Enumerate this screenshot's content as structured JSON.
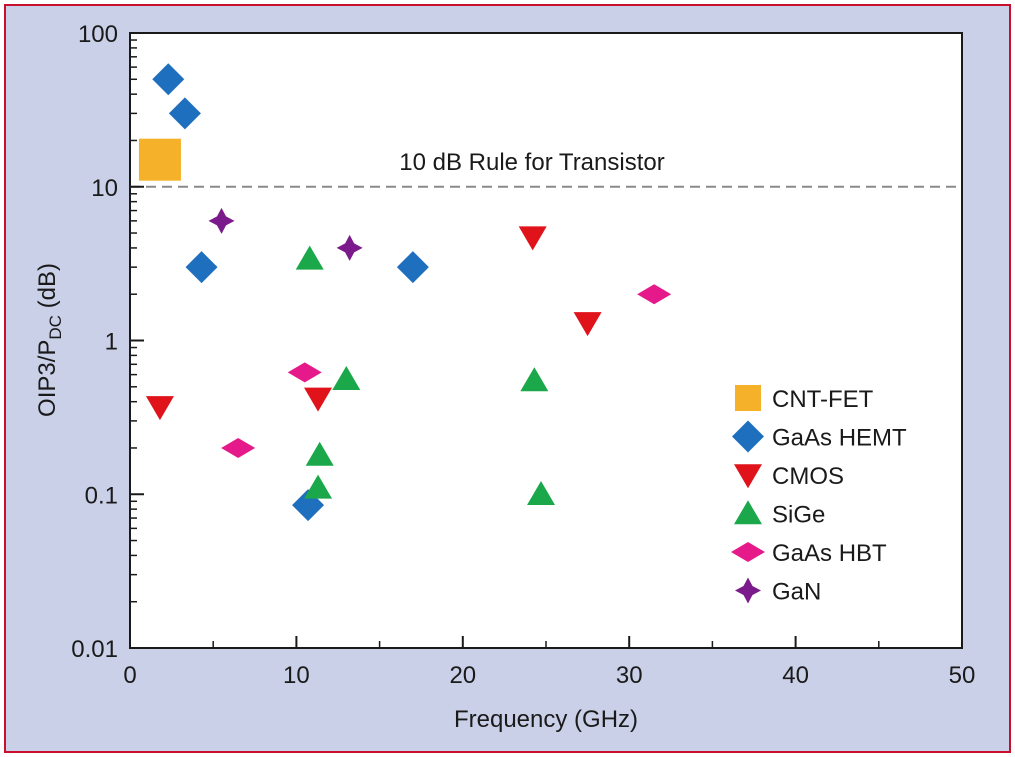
{
  "chart_data": {
    "type": "scatter",
    "title": "",
    "xlabel": "Frequency (GHz)",
    "ylabel": {
      "base": "OIP3/P",
      "sub": "DC",
      "suffix": " (dB)"
    },
    "xlim": [
      0,
      50
    ],
    "ylim": [
      0.01,
      100
    ],
    "yscale": "log",
    "xticks": [
      0,
      10,
      20,
      30,
      40,
      50
    ],
    "yticks": [
      {
        "value": 0.01,
        "label": "0.01"
      },
      {
        "value": 0.1,
        "label": "0.1"
      },
      {
        "value": 1,
        "label": "1"
      },
      {
        "value": 10,
        "label": "10"
      },
      {
        "value": 100,
        "label": "100"
      }
    ],
    "grid": false,
    "legend_position": "lower-right",
    "reference_line": {
      "y": 10,
      "label": "10 dB Rule for Transistor",
      "style": "dashed",
      "color": "#8a8a8a"
    },
    "series": [
      {
        "name": "CNT-FET",
        "marker": "square",
        "color": "#f5b12a",
        "points": [
          {
            "x": 1.8,
            "y": 15
          }
        ]
      },
      {
        "name": "GaAs HEMT",
        "marker": "diamond",
        "color": "#1f6fbf",
        "points": [
          {
            "x": 2.3,
            "y": 50
          },
          {
            "x": 3.3,
            "y": 30
          },
          {
            "x": 4.3,
            "y": 3
          },
          {
            "x": 17,
            "y": 3
          },
          {
            "x": 10.7,
            "y": 0.085
          }
        ]
      },
      {
        "name": "CMOS",
        "marker": "triangle-down",
        "color": "#e0121a",
        "points": [
          {
            "x": 1.8,
            "y": 0.37
          },
          {
            "x": 11.3,
            "y": 0.42
          },
          {
            "x": 24.2,
            "y": 4.7
          },
          {
            "x": 27.5,
            "y": 1.3
          }
        ]
      },
      {
        "name": "SiGe",
        "marker": "triangle-up",
        "color": "#1aa84a",
        "points": [
          {
            "x": 10.8,
            "y": 3.4
          },
          {
            "x": 13,
            "y": 0.56
          },
          {
            "x": 11.4,
            "y": 0.18
          },
          {
            "x": 11.3,
            "y": 0.11
          },
          {
            "x": 24.3,
            "y": 0.55
          },
          {
            "x": 24.7,
            "y": 0.1
          }
        ]
      },
      {
        "name": "GaAs HBT",
        "marker": "diamond-wide",
        "color": "#e6198a",
        "points": [
          {
            "x": 6.5,
            "y": 0.2
          },
          {
            "x": 10.5,
            "y": 0.62
          },
          {
            "x": 31.5,
            "y": 2
          }
        ]
      },
      {
        "name": "GaN",
        "marker": "star4",
        "color": "#7b1a8a",
        "points": [
          {
            "x": 5.5,
            "y": 6
          },
          {
            "x": 13.2,
            "y": 4
          }
        ]
      }
    ]
  }
}
